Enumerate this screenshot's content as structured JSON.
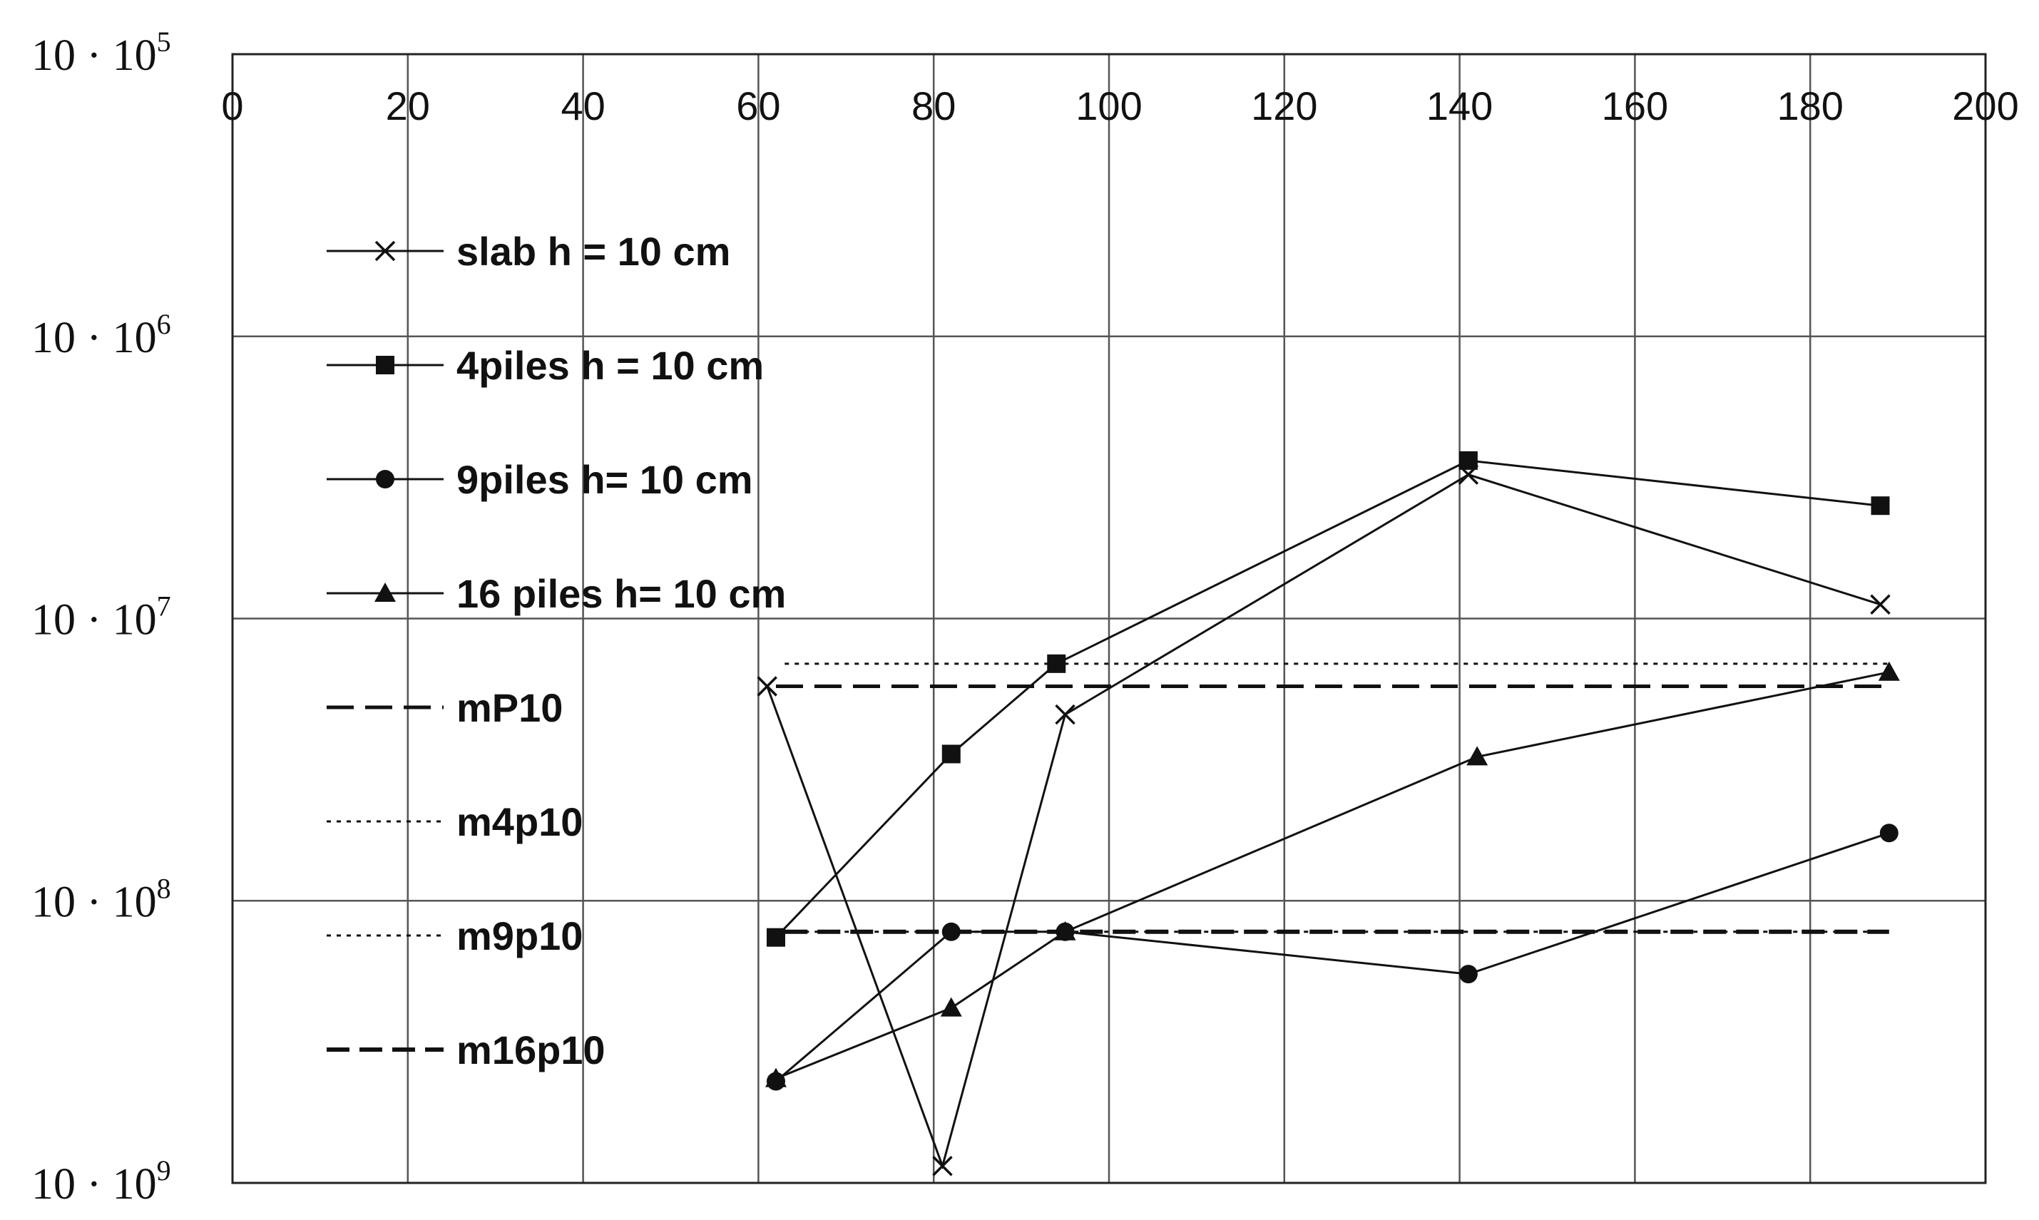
{
  "chart_data": {
    "type": "line",
    "title": "",
    "xlabel": "",
    "ylabel": "",
    "x_axis": {
      "position": "top",
      "range": [
        0,
        200
      ],
      "ticks": [
        0,
        20,
        40,
        60,
        80,
        100,
        120,
        140,
        160,
        180,
        200
      ]
    },
    "y_axis": {
      "scale": "log",
      "inverted": true,
      "exponent_range": [
        5,
        9
      ],
      "tick_labels": [
        {
          "exp": 5,
          "base": "10 · 10",
          "sup": "5"
        },
        {
          "exp": 6,
          "base": "10 · 10",
          "sup": "6"
        },
        {
          "exp": 7,
          "base": "10 · 10",
          "sup": "7"
        },
        {
          "exp": 8,
          "base": "10 · 10",
          "sup": "8"
        },
        {
          "exp": 9,
          "base": "10 · 10",
          "sup": "9"
        }
      ]
    },
    "grid": true,
    "legend_position": "left",
    "series": [
      {
        "name": "slab  h = 10 cm",
        "marker": "x",
        "style": "solid",
        "points": [
          [
            61,
            7.24
          ],
          [
            81,
            8.94
          ],
          [
            95,
            7.34
          ],
          [
            141,
            6.49
          ],
          [
            188,
            6.95
          ]
        ]
      },
      {
        "name": "4piles h = 10 cm",
        "marker": "square",
        "style": "solid",
        "points": [
          [
            62,
            8.13
          ],
          [
            82,
            7.48
          ],
          [
            94,
            7.16
          ],
          [
            141,
            6.44
          ],
          [
            188,
            6.6
          ]
        ]
      },
      {
        "name": "9piles h= 10 cm",
        "marker": "circle",
        "style": "solid",
        "points": [
          [
            62,
            8.64
          ],
          [
            82,
            8.11
          ],
          [
            95,
            8.11
          ],
          [
            141,
            8.26
          ],
          [
            189,
            7.76
          ]
        ]
      },
      {
        "name": "16 piles h= 10 cm",
        "marker": "triangle",
        "style": "solid",
        "points": [
          [
            62,
            8.63
          ],
          [
            82,
            8.38
          ],
          [
            95,
            8.11
          ],
          [
            142,
            7.49
          ],
          [
            189,
            7.19
          ]
        ]
      },
      {
        "name": "mP10",
        "marker": "none",
        "style": "dashed",
        "points": [
          [
            62,
            7.24
          ],
          [
            189,
            7.24
          ]
        ]
      },
      {
        "name": "m4p10",
        "marker": "none",
        "style": "dotted",
        "points": [
          [
            63,
            7.16
          ],
          [
            189,
            7.16
          ]
        ]
      },
      {
        "name": "m9p10",
        "marker": "none",
        "style": "dotted",
        "points": [
          [
            63,
            8.11
          ],
          [
            189,
            8.11
          ]
        ]
      },
      {
        "name": "m16p10",
        "marker": "none",
        "style": "dashed-bold",
        "points": [
          [
            63,
            8.11
          ],
          [
            189,
            8.11
          ]
        ]
      }
    ]
  }
}
